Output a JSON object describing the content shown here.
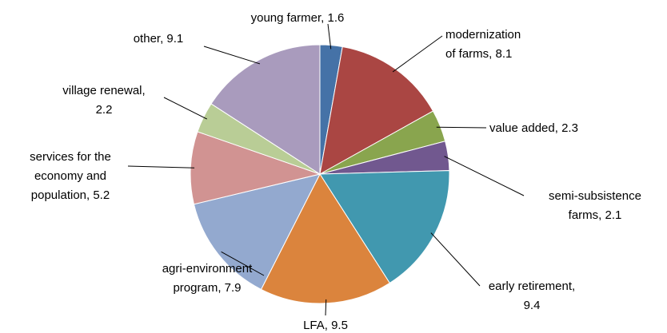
{
  "chart_data": {
    "type": "pie",
    "value_labels": [
      "young farmer, 1.6",
      "modernization\nof farms, 8.1",
      "value added, 2.3",
      "semi-subsistence\nfarms, 2.1",
      "early retirement,\n9.4",
      "LFA, 9.5",
      "agri-environment\nprogram, 7.9",
      "services for the\neconomy and\npopulation, 5.2",
      "village renewal,\n2.2",
      "other, 9.1"
    ],
    "values": [
      1.6,
      8.1,
      2.3,
      2.1,
      9.4,
      9.5,
      7.9,
      5.2,
      2.2,
      9.1
    ],
    "colors": [
      "#4572a7",
      "#aa4643",
      "#89a54e",
      "#71588f",
      "#4198af",
      "#db843d",
      "#93a9cf",
      "#d19392",
      "#b9cd96",
      "#a99bbd"
    ]
  }
}
